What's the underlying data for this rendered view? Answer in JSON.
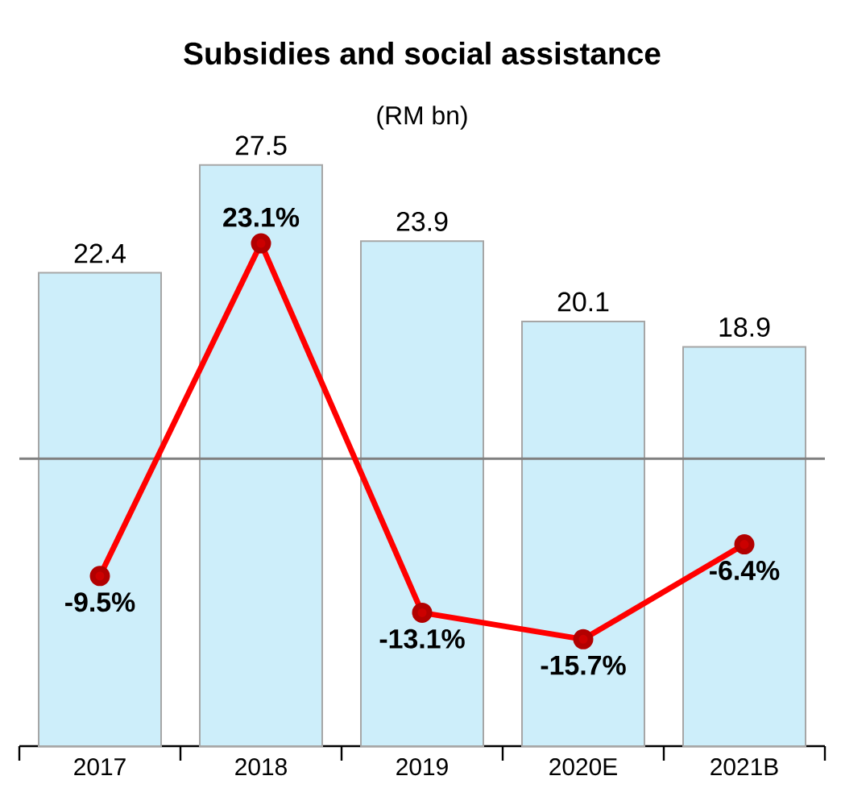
{
  "chart_data": {
    "type": "bar",
    "title": "Subsidies and social assistance",
    "subtitle": "(RM bn)",
    "categories": [
      "2017",
      "2018",
      "2019",
      "2020E",
      "2021B"
    ],
    "series": [
      {
        "color": "#cdeefa",
        "values": [
          22.4,
          27.5,
          23.9,
          20.1,
          18.9
        ]
      },
      {
        "type": "line",
        "axis": "y2",
        "color": "#ff0000",
        "values": [
          -9.5,
          23.1,
          -13.1,
          -15.7,
          -6.4
        ],
        "value_labels": [
          "-9.5%",
          "23.1%",
          "-13.1%",
          "-15.7%",
          "-6.4%"
        ]
      }
    ],
    "ref_lines": [
      {
        "axis": "y2",
        "value": 2,
        "color": "#808080"
      }
    ],
    "data_labels": true,
    "marker": "circle",
    "line_style": "solid",
    "tick_labels": "x"
  }
}
